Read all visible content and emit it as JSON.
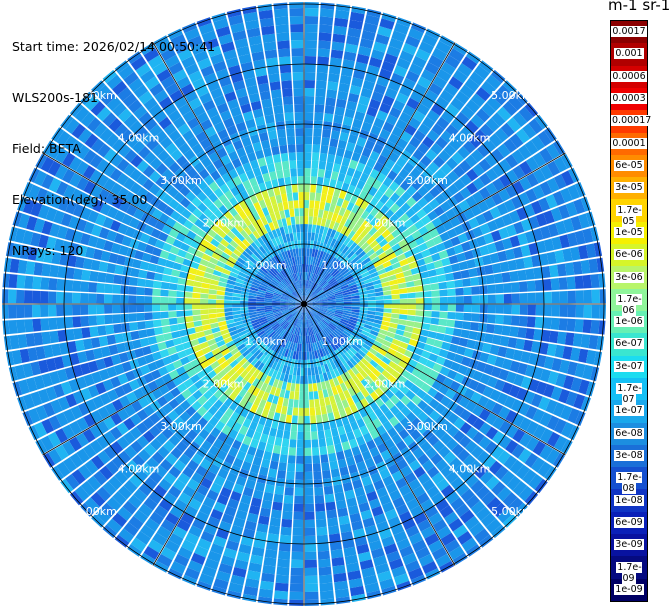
{
  "header": {
    "start_time": "Start time: 2026/02/14 00:50:41",
    "instrument": "WLS200s-181",
    "field": "Field: BETA",
    "elevation": "Elevation(deg): 35.00",
    "nrays": "NRays: 120"
  },
  "colorbar": {
    "title": "m-1 sr-1",
    "labels": [
      "0.0017",
      "0.001",
      "0.0006",
      "0.0003",
      "0.00017",
      "0.0001",
      "6e-05",
      "3e-05",
      "1.7e-05",
      "1e-05",
      "6e-06",
      "3e-06",
      "1.7e-06",
      "1e-06",
      "6e-07",
      "3e-07",
      "1.7e-07",
      "1e-07",
      "6e-08",
      "3e-08",
      "1.7e-08",
      "1e-08",
      "6e-09",
      "3e-09",
      "1.7e-09",
      "1e-09"
    ],
    "colors": [
      "#8b0000",
      "#b00000",
      "#d40000",
      "#f00000",
      "#ff3a00",
      "#ff6a00",
      "#ff8c00",
      "#ffb000",
      "#ffd400",
      "#f5f000",
      "#d6f52a",
      "#b8f56a",
      "#8ff59a",
      "#66f0b4",
      "#3ae6d0",
      "#1cdcf0",
      "#14c0f5",
      "#1aa8ec",
      "#1c8ee0",
      "#1a6fd8",
      "#1550d0",
      "#1035c4",
      "#0a20b8",
      "#0812a0",
      "#050a80",
      "#000064"
    ]
  },
  "range_labels": {
    "r1": "1.00km",
    "r2": "2.00km",
    "r3": "3.00km",
    "r4": "4.00km",
    "r5": "5.00km"
  }
}
